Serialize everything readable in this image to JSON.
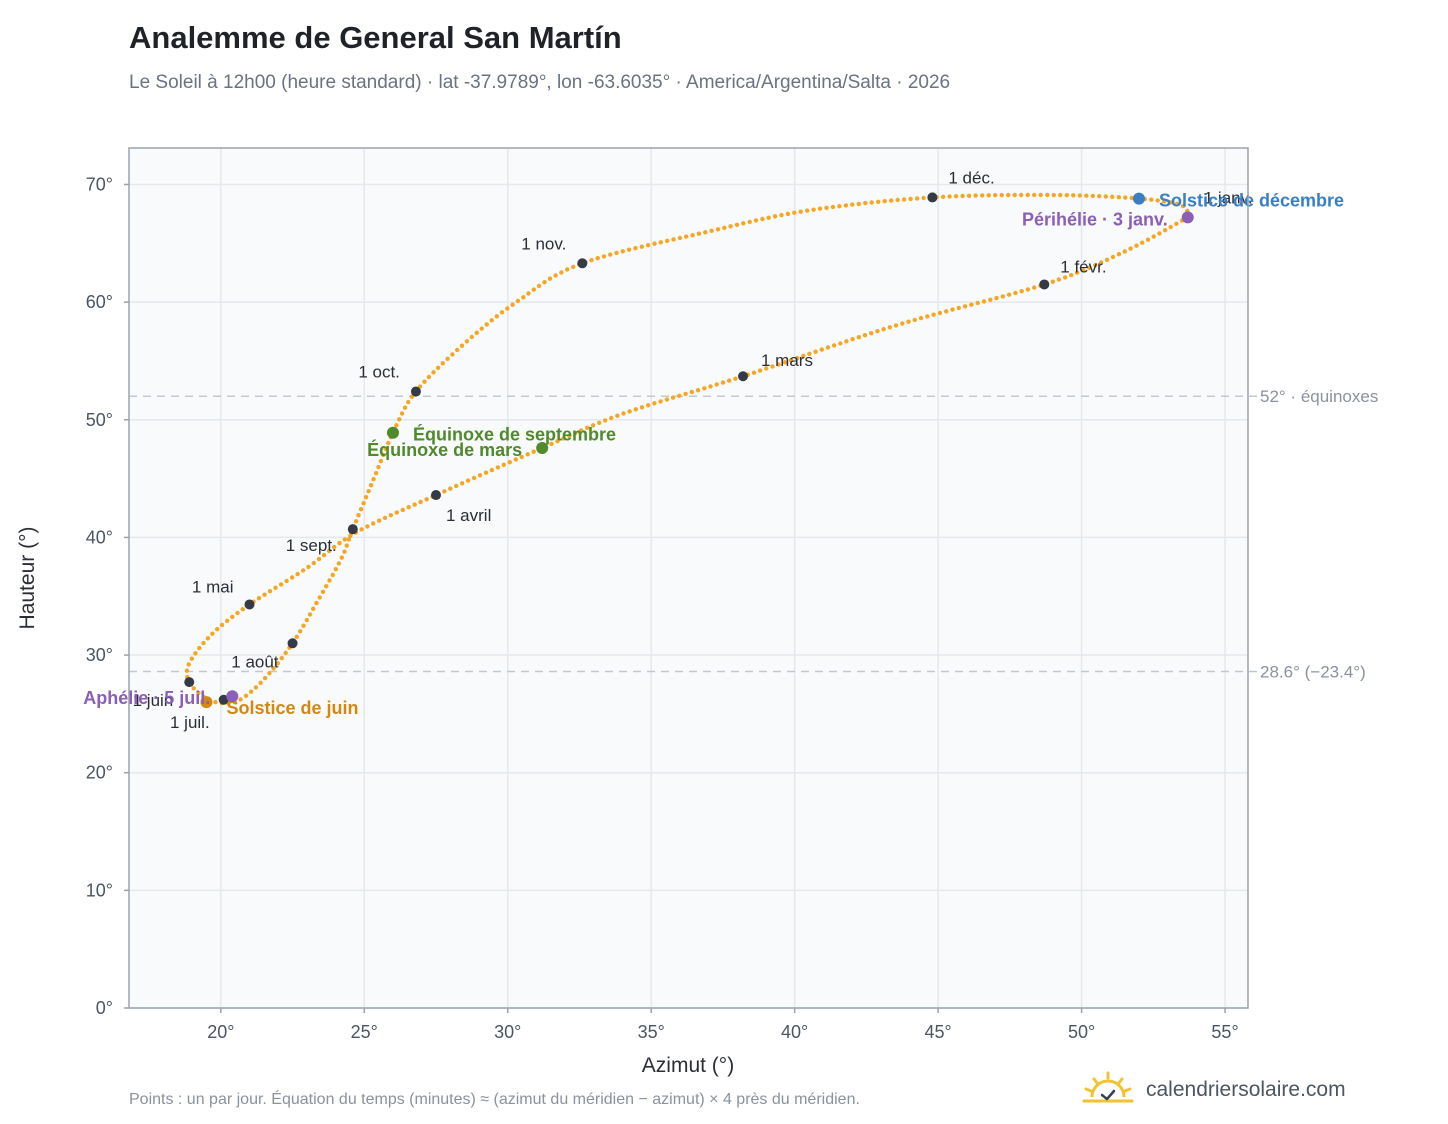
{
  "header": {
    "title": "Analemme de General San Martín",
    "subtitle": "Le Soleil à 12h00 (heure standard) · lat -37.9789°, lon -63.6035° · America/Argentina/Salta · 2026"
  },
  "footer": {
    "note": "Points : un par jour. Équation du temps (minutes) ≈ (azimut du méridien − azimut) × 4 près du méridien.",
    "brand": "calendriersolaire.com",
    "brand_icon": "sun-icon"
  },
  "colors": {
    "curve": "#f5a623",
    "marker": "#343a46",
    "solstice_june": "#d4880f",
    "solstice_december": "#3a7fc4",
    "equinox": "#4f8a2b",
    "perihelion": "#8b5fb5",
    "plot_bg": "#f8fafc",
    "grid": "#e5e8ec",
    "reference_line": "#c3c8ce"
  },
  "chart_data": {
    "type": "scatter",
    "xlabel": "Azimut (°)",
    "ylabel": "Hauteur (°)",
    "xlim": [
      16.8,
      55.8
    ],
    "ylim": [
      0,
      73.1
    ],
    "xticks": [
      20,
      25,
      30,
      35,
      40,
      45,
      50,
      55
    ],
    "yticks": [
      0,
      10,
      20,
      30,
      40,
      50,
      60,
      70
    ],
    "xtick_labels": [
      "20°",
      "25°",
      "30°",
      "35°",
      "40°",
      "45°",
      "50°",
      "55°"
    ],
    "ytick_labels": [
      "0°",
      "10°",
      "20°",
      "30°",
      "40°",
      "50°",
      "60°",
      "70°"
    ],
    "grid": true,
    "reference_lines": [
      {
        "y": 52.0,
        "label": "52° · équinoxes"
      },
      {
        "y": 28.6,
        "label": "28.6° (−23.4°)"
      }
    ],
    "curve_keypoints": [
      [
        53.7,
        67.2
      ],
      [
        51.5,
        64.3
      ],
      [
        48.7,
        61.5
      ],
      [
        43.5,
        58.0
      ],
      [
        38.2,
        53.7
      ],
      [
        34.0,
        50.5
      ],
      [
        31.2,
        47.6
      ],
      [
        27.5,
        43.6
      ],
      [
        24.7,
        40.4
      ],
      [
        23.0,
        37.4
      ],
      [
        21.0,
        34.3
      ],
      [
        19.7,
        31.8
      ],
      [
        18.9,
        29.3
      ],
      [
        18.9,
        27.7
      ],
      [
        19.5,
        26.3
      ],
      [
        20.2,
        25.9
      ],
      [
        20.8,
        26.4
      ],
      [
        21.6,
        28.2
      ],
      [
        22.5,
        31.0
      ],
      [
        23.4,
        34.7
      ],
      [
        24.2,
        38.2
      ],
      [
        24.6,
        40.7
      ],
      [
        25.3,
        44.8
      ],
      [
        26.0,
        48.9
      ],
      [
        26.8,
        52.4
      ],
      [
        28.5,
        56.5
      ],
      [
        30.3,
        60.0
      ],
      [
        32.6,
        63.3
      ],
      [
        37.0,
        66.0
      ],
      [
        40.5,
        67.8
      ],
      [
        44.8,
        68.9
      ],
      [
        49.0,
        69.1
      ],
      [
        52.0,
        68.8
      ],
      [
        53.5,
        68.2
      ],
      [
        53.7,
        67.2
      ]
    ],
    "month_markers": [
      {
        "label": "1 janv.",
        "x": 53.7,
        "y": 67.2
      },
      {
        "label": "1 févr.",
        "x": 48.7,
        "y": 61.5
      },
      {
        "label": "1 mars",
        "x": 38.2,
        "y": 53.7
      },
      {
        "label": "1 avril",
        "x": 27.5,
        "y": 43.6
      },
      {
        "label": "1 mai",
        "x": 21.0,
        "y": 34.3
      },
      {
        "label": "1 juin",
        "x": 18.9,
        "y": 27.7
      },
      {
        "label": "1 juil.",
        "x": 20.1,
        "y": 26.2
      },
      {
        "label": "1 août",
        "x": 22.5,
        "y": 31.0
      },
      {
        "label": "1 sept.",
        "x": 24.6,
        "y": 40.7
      },
      {
        "label": "1 oct.",
        "x": 26.8,
        "y": 52.4
      },
      {
        "label": "1 nov.",
        "x": 32.6,
        "y": 63.3
      },
      {
        "label": "1 déc.",
        "x": 44.8,
        "y": 68.9
      }
    ],
    "events": [
      {
        "label": "Solstice de décembre",
        "x": 52.0,
        "y": 68.8,
        "color_key": "solstice_december"
      },
      {
        "label": "Périhélie · 3 janv.",
        "x": 53.7,
        "y": 67.2,
        "color_key": "perihelion"
      },
      {
        "label": "Équinoxe de septembre",
        "x": 26.0,
        "y": 48.9,
        "color_key": "equinox"
      },
      {
        "label": "Équinoxe de mars",
        "x": 31.2,
        "y": 47.6,
        "color_key": "equinox"
      },
      {
        "label": "Solstice de juin",
        "x": 19.5,
        "y": 26.0,
        "color_key": "solstice_june"
      },
      {
        "label": "Aphélie · 5 juil.",
        "x": 20.4,
        "y": 26.5,
        "color_key": "perihelion"
      }
    ]
  }
}
